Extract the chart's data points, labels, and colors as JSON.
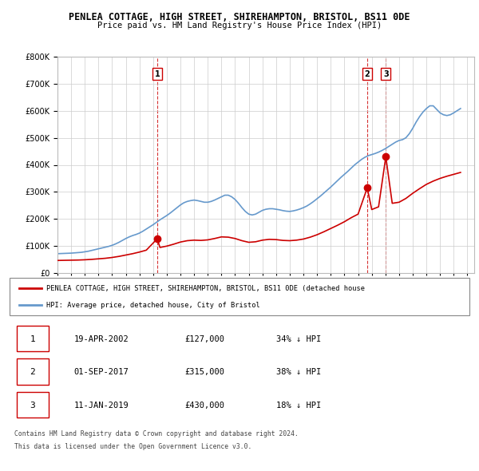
{
  "title1": "PENLEA COTTAGE, HIGH STREET, SHIREHAMPTON, BRISTOL, BS11 0DE",
  "title2": "Price paid vs. HM Land Registry's House Price Index (HPI)",
  "ylabel_ticks": [
    "£0",
    "£100K",
    "£200K",
    "£300K",
    "£400K",
    "£500K",
    "£600K",
    "£700K",
    "£800K"
  ],
  "ytick_values": [
    0,
    100000,
    200000,
    300000,
    400000,
    500000,
    600000,
    700000,
    800000
  ],
  "xlim": [
    1995.0,
    2025.5
  ],
  "ylim": [
    0,
    800000
  ],
  "hpi_color": "#6699cc",
  "price_color": "#cc0000",
  "transaction_color": "#cc0000",
  "vline_color": "#cc0000",
  "grid_color": "#cccccc",
  "background_color": "#ffffff",
  "transactions": [
    {
      "date_num": 2002.3,
      "price": 127000,
      "label": "1"
    },
    {
      "date_num": 2017.67,
      "price": 315000,
      "label": "2"
    },
    {
      "date_num": 2019.03,
      "price": 430000,
      "label": "3"
    }
  ],
  "legend_line1": "PENLEA COTTAGE, HIGH STREET, SHIREHAMPTON, BRISTOL, BS11 0DE (detached house",
  "legend_line2": "HPI: Average price, detached house, City of Bristol",
  "table": [
    {
      "num": "1",
      "date": "19-APR-2002",
      "price": "£127,000",
      "hpi": "34% ↓ HPI"
    },
    {
      "num": "2",
      "date": "01-SEP-2017",
      "price": "£315,000",
      "hpi": "38% ↓ HPI"
    },
    {
      "num": "3",
      "date": "11-JAN-2019",
      "price": "£430,000",
      "hpi": "18% ↓ HPI"
    }
  ],
  "footer1": "Contains HM Land Registry data © Crown copyright and database right 2024.",
  "footer2": "This data is licensed under the Open Government Licence v3.0.",
  "hpi_data_x": [
    1995.0,
    1995.25,
    1995.5,
    1995.75,
    1996.0,
    1996.25,
    1996.5,
    1996.75,
    1997.0,
    1997.25,
    1997.5,
    1997.75,
    1998.0,
    1998.25,
    1998.5,
    1998.75,
    1999.0,
    1999.25,
    1999.5,
    1999.75,
    2000.0,
    2000.25,
    2000.5,
    2000.75,
    2001.0,
    2001.25,
    2001.5,
    2001.75,
    2002.0,
    2002.25,
    2002.5,
    2002.75,
    2003.0,
    2003.25,
    2003.5,
    2003.75,
    2004.0,
    2004.25,
    2004.5,
    2004.75,
    2005.0,
    2005.25,
    2005.5,
    2005.75,
    2006.0,
    2006.25,
    2006.5,
    2006.75,
    2007.0,
    2007.25,
    2007.5,
    2007.75,
    2008.0,
    2008.25,
    2008.5,
    2008.75,
    2009.0,
    2009.25,
    2009.5,
    2009.75,
    2010.0,
    2010.25,
    2010.5,
    2010.75,
    2011.0,
    2011.25,
    2011.5,
    2011.75,
    2012.0,
    2012.25,
    2012.5,
    2012.75,
    2013.0,
    2013.25,
    2013.5,
    2013.75,
    2014.0,
    2014.25,
    2014.5,
    2014.75,
    2015.0,
    2015.25,
    2015.5,
    2015.75,
    2016.0,
    2016.25,
    2016.5,
    2016.75,
    2017.0,
    2017.25,
    2017.5,
    2017.75,
    2018.0,
    2018.25,
    2018.5,
    2018.75,
    2019.0,
    2019.25,
    2019.5,
    2019.75,
    2020.0,
    2020.25,
    2020.5,
    2020.75,
    2021.0,
    2021.25,
    2021.5,
    2021.75,
    2022.0,
    2022.25,
    2022.5,
    2022.75,
    2023.0,
    2023.25,
    2023.5,
    2023.75,
    2024.0,
    2024.25,
    2024.5
  ],
  "hpi_data_y": [
    72000,
    72500,
    73000,
    73500,
    74000,
    75000,
    76000,
    77000,
    79000,
    81000,
    84000,
    87000,
    90000,
    93000,
    96000,
    99000,
    103000,
    108000,
    114000,
    121000,
    128000,
    134000,
    139000,
    143000,
    148000,
    155000,
    163000,
    171000,
    179000,
    188000,
    197000,
    205000,
    213000,
    222000,
    232000,
    242000,
    252000,
    260000,
    265000,
    268000,
    270000,
    268000,
    265000,
    262000,
    262000,
    265000,
    270000,
    276000,
    282000,
    288000,
    288000,
    282000,
    272000,
    258000,
    242000,
    228000,
    218000,
    215000,
    218000,
    225000,
    232000,
    236000,
    238000,
    238000,
    236000,
    234000,
    231000,
    229000,
    228000,
    230000,
    233000,
    237000,
    242000,
    248000,
    256000,
    265000,
    275000,
    285000,
    296000,
    307000,
    318000,
    330000,
    342000,
    354000,
    365000,
    376000,
    388000,
    400000,
    410000,
    420000,
    428000,
    434000,
    438000,
    442000,
    447000,
    453000,
    460000,
    468000,
    476000,
    484000,
    490000,
    493000,
    500000,
    515000,
    535000,
    558000,
    578000,
    595000,
    608000,
    618000,
    618000,
    605000,
    592000,
    585000,
    582000,
    585000,
    592000,
    600000,
    608000
  ],
  "price_line_x": [
    1995.0,
    1995.5,
    1996.0,
    1996.5,
    1997.0,
    1997.5,
    1998.0,
    1998.5,
    1999.0,
    1999.5,
    2000.0,
    2000.5,
    2001.0,
    2001.5,
    2002.3,
    2002.5,
    2003.0,
    2003.5,
    2004.0,
    2004.5,
    2005.0,
    2005.5,
    2006.0,
    2006.5,
    2007.0,
    2007.5,
    2008.0,
    2008.5,
    2009.0,
    2009.5,
    2010.0,
    2010.5,
    2011.0,
    2011.5,
    2012.0,
    2012.5,
    2013.0,
    2013.5,
    2014.0,
    2014.5,
    2015.0,
    2015.5,
    2016.0,
    2016.5,
    2017.0,
    2017.67,
    2018.0,
    2018.5,
    2019.03,
    2019.5,
    2020.0,
    2020.5,
    2021.0,
    2021.5,
    2022.0,
    2022.5,
    2023.0,
    2023.5,
    2024.0,
    2024.5
  ],
  "price_line_y": [
    47000,
    47500,
    48000,
    48500,
    49500,
    51000,
    53000,
    55000,
    58000,
    62000,
    67000,
    72000,
    78000,
    85000,
    127000,
    95000,
    100000,
    107000,
    115000,
    120000,
    122000,
    121000,
    123000,
    128000,
    134000,
    133000,
    128000,
    120000,
    114000,
    116000,
    122000,
    125000,
    124000,
    121000,
    120000,
    122000,
    126000,
    133000,
    142000,
    153000,
    165000,
    177000,
    190000,
    205000,
    218000,
    315000,
    235000,
    245000,
    430000,
    258000,
    262000,
    276000,
    295000,
    312000,
    328000,
    340000,
    350000,
    358000,
    365000,
    372000
  ]
}
